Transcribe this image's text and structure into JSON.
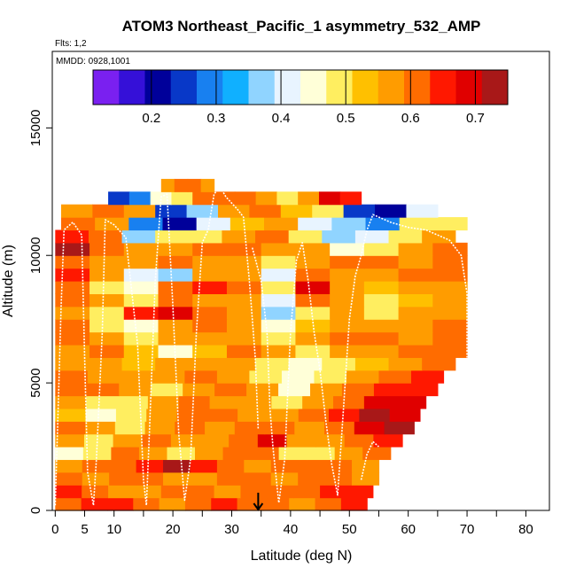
{
  "chart_data": {
    "type": "heatmap",
    "title": "ATOM3 Northeast_Pacific_1 asymmetry_532_AMP",
    "flights_label": "Flts: 1,2",
    "date_label": "MMDD: 0928,1001",
    "xlabel": "Latitude (deg N)",
    "ylabel": "Altitude (m)",
    "xlim": [
      -0.5,
      84
    ],
    "ylim": [
      0,
      18000
    ],
    "xticks": [
      0,
      5,
      10,
      20,
      30,
      40,
      50,
      60,
      70,
      80
    ],
    "xtick_labels": [
      "0",
      "5",
      "10",
      "20",
      "30",
      "40",
      "50",
      "60",
      "70",
      "80"
    ],
    "xticks_unlabeled": [
      15,
      25,
      35,
      45,
      55,
      65,
      75,
      85
    ],
    "yticks": [
      0,
      5000,
      10000,
      15000
    ],
    "ytick_labels": [
      "0",
      "5000",
      "10000",
      "15000"
    ],
    "colorbar": {
      "min": 0.11,
      "max": 0.75,
      "ticks": [
        0.2,
        0.3,
        0.4,
        0.5,
        0.6,
        0.7
      ],
      "tick_labels": [
        "0.2",
        "0.3",
        "0.4",
        "0.5",
        "0.6",
        "0.7"
      ],
      "colors": [
        "#7a20f0",
        "#3510d8",
        "#00009a",
        "#0838c8",
        "#1880f0",
        "#10b0ff",
        "#90d4ff",
        "#e8f4ff",
        "#ffffd8",
        "#ffee60",
        "#ffc000",
        "#ff9c00",
        "#ff6c00",
        "#ff1800",
        "#e00000",
        "#a81818"
      ]
    },
    "marker": {
      "latitude": 34.5,
      "direction": "down"
    },
    "altitude_bin_m": 500,
    "rows": [
      {
        "alt": 0,
        "lat_min": 0,
        "lat_max": 53,
        "values": [
          0.6,
          0.63,
          0.65,
          0.6,
          0.55,
          0.6,
          0.66,
          0.62,
          0.6,
          0.58,
          0.6,
          0.63
        ]
      },
      {
        "alt": 500,
        "lat_min": 0,
        "lat_max": 54,
        "values": [
          0.64,
          0.6,
          0.55,
          0.58,
          0.62,
          0.6,
          0.58,
          0.6,
          0.62,
          0.6,
          0.66,
          0.64
        ]
      },
      {
        "alt": 1000,
        "lat_min": 0,
        "lat_max": 55,
        "values": [
          0.62,
          0.58,
          0.6,
          0.62,
          0.58,
          0.55,
          0.6,
          0.6,
          0.58,
          0.62,
          0.6,
          0.58
        ]
      },
      {
        "alt": 1500,
        "lat_min": 0,
        "lat_max": 55,
        "values": [
          0.58,
          0.6,
          0.62,
          0.66,
          0.72,
          0.65,
          0.6,
          0.55,
          0.6,
          0.62,
          0.6,
          0.56
        ]
      },
      {
        "alt": 2000,
        "lat_min": 0,
        "lat_max": 57,
        "values": [
          0.45,
          0.5,
          0.6,
          0.55,
          0.5,
          0.58,
          0.6,
          0.62,
          0.5,
          0.48,
          0.55,
          0.6
        ]
      },
      {
        "alt": 2500,
        "lat_min": 0,
        "lat_max": 59,
        "values": [
          0.55,
          0.48,
          0.55,
          0.6,
          0.58,
          0.55,
          0.6,
          0.7,
          0.58,
          0.55,
          0.6,
          0.66
        ]
      },
      {
        "alt": 3000,
        "lat_min": 0,
        "lat_max": 61,
        "values": [
          0.6,
          0.55,
          0.5,
          0.55,
          0.6,
          0.58,
          0.62,
          0.6,
          0.55,
          0.6,
          0.7,
          0.72
        ]
      },
      {
        "alt": 3500,
        "lat_min": 0,
        "lat_max": 62,
        "values": [
          0.52,
          0.45,
          0.5,
          0.58,
          0.62,
          0.6,
          0.55,
          0.58,
          0.62,
          0.66,
          0.72,
          0.7
        ]
      },
      {
        "alt": 4000,
        "lat_min": 0,
        "lat_max": 63,
        "values": [
          0.58,
          0.5,
          0.47,
          0.55,
          0.6,
          0.58,
          0.55,
          0.5,
          0.58,
          0.62,
          0.68,
          0.7
        ]
      },
      {
        "alt": 4500,
        "lat_min": 0,
        "lat_max": 65,
        "values": [
          0.6,
          0.62,
          0.55,
          0.5,
          0.58,
          0.6,
          0.55,
          0.45,
          0.55,
          0.6,
          0.65,
          0.66
        ]
      },
      {
        "alt": 5000,
        "lat_min": 0,
        "lat_max": 66,
        "values": [
          0.62,
          0.58,
          0.55,
          0.58,
          0.6,
          0.55,
          0.5,
          0.45,
          0.5,
          0.55,
          0.6,
          0.64
        ]
      },
      {
        "alt": 5500,
        "lat_min": 0,
        "lat_max": 68,
        "values": [
          0.58,
          0.55,
          0.52,
          0.55,
          0.58,
          0.55,
          0.5,
          0.46,
          0.48,
          0.52,
          0.58,
          0.62
        ]
      },
      {
        "alt": 6000,
        "lat_min": 0,
        "lat_max": 70,
        "values": [
          0.55,
          0.6,
          0.52,
          0.45,
          0.52,
          0.6,
          0.55,
          0.5,
          0.55,
          0.58,
          0.6,
          0.6
        ]
      },
      {
        "alt": 6500,
        "lat_min": 0,
        "lat_max": 70,
        "values": [
          0.6,
          0.55,
          0.5,
          0.55,
          0.58,
          0.55,
          0.5,
          0.55,
          0.6,
          0.6,
          0.58,
          0.6
        ]
      },
      {
        "alt": 7000,
        "lat_min": 0,
        "lat_max": 70,
        "values": [
          0.62,
          0.5,
          0.45,
          0.55,
          0.6,
          0.58,
          0.45,
          0.52,
          0.58,
          0.55,
          0.58,
          0.6
        ]
      },
      {
        "alt": 7500,
        "lat_min": 0,
        "lat_max": 70,
        "values": [
          0.55,
          0.5,
          0.65,
          0.7,
          0.6,
          0.55,
          0.35,
          0.5,
          0.55,
          0.5,
          0.55,
          0.58
        ]
      },
      {
        "alt": 8000,
        "lat_min": 0,
        "lat_max": 70,
        "values": [
          0.6,
          0.55,
          0.5,
          0.62,
          0.58,
          0.55,
          0.4,
          0.6,
          0.55,
          0.5,
          0.52,
          0.56
        ]
      },
      {
        "alt": 8500,
        "lat_min": 0,
        "lat_max": 70,
        "values": [
          0.62,
          0.5,
          0.45,
          0.6,
          0.65,
          0.6,
          0.5,
          0.7,
          0.55,
          0.52,
          0.55,
          0.58
        ]
      },
      {
        "alt": 9000,
        "lat_min": 0,
        "lat_max": 70,
        "values": [
          0.66,
          0.55,
          0.4,
          0.35,
          0.55,
          0.58,
          0.4,
          0.6,
          0.58,
          0.55,
          0.6,
          0.62
        ]
      },
      {
        "alt": 9500,
        "lat_min": 0,
        "lat_max": 70,
        "values": [
          0.62,
          0.58,
          0.55,
          0.6,
          0.58,
          0.55,
          0.5,
          0.58,
          0.6,
          0.6,
          0.55,
          0.62
        ]
      },
      {
        "alt": 10000,
        "lat_min": 0,
        "lat_max": 70,
        "values": [
          0.72,
          0.62,
          0.58,
          0.55,
          0.6,
          0.62,
          0.58,
          0.55,
          0.45,
          0.5,
          0.58,
          0.6
        ]
      },
      {
        "alt": 10500,
        "lat_min": 0,
        "lat_max": 68,
        "values": [
          0.65,
          0.6,
          0.35,
          0.48,
          0.5,
          0.55,
          0.62,
          0.5,
          0.35,
          0.4,
          0.48,
          0.55
        ]
      },
      {
        "alt": 11000,
        "lat_min": 1,
        "lat_max": 70,
        "values": [
          0.6,
          0.55,
          0.3,
          0.2,
          0.4,
          0.52,
          0.55,
          0.4,
          0.35,
          0.3,
          0.5,
          0.48
        ]
      },
      {
        "alt": 11500,
        "lat_min": 1,
        "lat_max": 65,
        "values": [
          0.58,
          0.6,
          0.55,
          0.25,
          0.35,
          0.58,
          0.6,
          0.52,
          0.5,
          0.25,
          0.2,
          0.4
        ]
      },
      {
        "alt": 12000,
        "lat_min": 9,
        "lat_max": 52,
        "values": [
          0.25,
          0.3,
          0.45,
          0.5,
          0.6,
          0.62,
          0.6,
          0.55,
          0.5,
          0.58,
          0.7,
          0.65
        ]
      },
      {
        "alt": 12500,
        "lat_min": 18,
        "lat_max": 27,
        "values": [
          0.58,
          0.6,
          0.62,
          0.58
        ]
      }
    ],
    "flight_tracks": [
      [
        [
          0,
          200
        ],
        [
          0.5,
          4000
        ],
        [
          1,
          8000
        ],
        [
          1.5,
          11000
        ],
        [
          3,
          11300
        ],
        [
          4.5,
          10800
        ],
        [
          5,
          6000
        ],
        [
          5.5,
          1500
        ],
        [
          6.5,
          200
        ],
        [
          7,
          2000
        ],
        [
          8,
          7000
        ],
        [
          8.5,
          11400
        ],
        [
          10,
          11200
        ],
        [
          12,
          10700
        ],
        [
          14,
          6500
        ],
        [
          15,
          1200
        ],
        [
          15.5,
          200
        ],
        [
          16,
          3000
        ],
        [
          17,
          9000
        ],
        [
          18,
          12300
        ],
        [
          19,
          12400
        ],
        [
          20,
          8000
        ],
        [
          21,
          3000
        ],
        [
          22,
          400
        ],
        [
          23,
          2000
        ],
        [
          24,
          7000
        ],
        [
          25,
          10500
        ],
        [
          26,
          11000
        ],
        [
          27,
          12400
        ],
        [
          28,
          12700
        ],
        [
          29,
          12300
        ],
        [
          31,
          11800
        ],
        [
          32,
          11500
        ],
        [
          33,
          9000
        ],
        [
          34,
          6000
        ],
        [
          34.5,
          3200
        ]
      ],
      [
        [
          33.5,
          10300
        ],
        [
          35,
          9000
        ],
        [
          36,
          7000
        ],
        [
          36.5,
          4000
        ],
        [
          37,
          2500
        ],
        [
          38,
          300
        ],
        [
          39,
          2000
        ],
        [
          40,
          7000
        ],
        [
          41,
          9800
        ],
        [
          42,
          10500
        ],
        [
          43,
          9000
        ],
        [
          44,
          7000
        ],
        [
          45,
          5500
        ],
        [
          46,
          3500
        ],
        [
          47,
          1800
        ],
        [
          48,
          600
        ],
        [
          49,
          4000
        ],
        [
          50,
          7500
        ],
        [
          51,
          9200
        ],
        [
          52,
          10000
        ],
        [
          53,
          11000
        ],
        [
          54,
          11600
        ],
        [
          57,
          11300
        ],
        [
          60,
          11100
        ],
        [
          63,
          11000
        ],
        [
          65,
          10800
        ],
        [
          67,
          10600
        ],
        [
          69,
          10000
        ],
        [
          70,
          8500
        ],
        [
          70,
          6000
        ]
      ],
      [
        [
          52,
          1200
        ],
        [
          53,
          2200
        ],
        [
          54,
          2700
        ],
        [
          55,
          2500
        ]
      ]
    ]
  }
}
